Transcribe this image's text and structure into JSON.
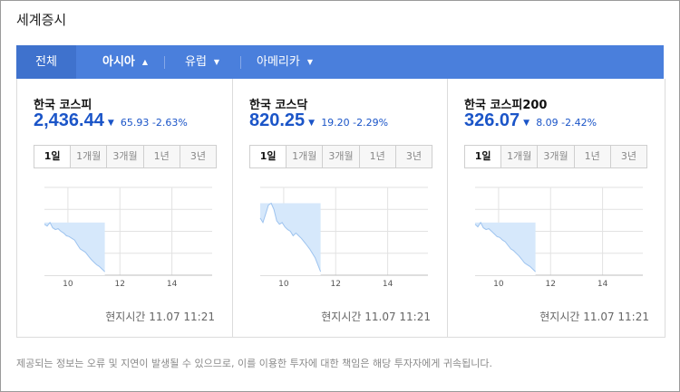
{
  "title": "세계증시",
  "tabs": [
    {
      "label": "전체",
      "active": false
    },
    {
      "label": "아시아",
      "active": true
    },
    {
      "label": "유럽",
      "active": false
    },
    {
      "label": "아메리카",
      "active": false
    }
  ],
  "cards": [
    {
      "name": "한국 코스피",
      "price": "2,436.44",
      "change": "65.93 -2.63%"
    },
    {
      "name": "한국 코스닥",
      "price": "820.25",
      "change": "19.20 -2.29%"
    },
    {
      "name": "한국 코스피200",
      "price": "326.07",
      "change": "8.09 -2.42%"
    }
  ],
  "periods": [
    "1일",
    "1개월",
    "3개월",
    "1년",
    "3년"
  ],
  "selected_period": "1일",
  "local_time": "현지시간 11.07 11:21",
  "disclaimer": "제공되는 정보는 오류 및 지연이 발생될 수 있으므로, 이를 이용한 투자에 대한 책임은 해당 투자자에게 귀속됩니다.",
  "colors": {
    "accent": "#4a7fdc",
    "price": "#1b55c8",
    "area_fill": "#d6e8fb",
    "area_line": "#9dc3ef",
    "up_line": "#e04040"
  },
  "chart_data": [
    {
      "type": "area",
      "x_ticks": [
        "10",
        "12",
        "14"
      ],
      "x_range": [
        "09:00",
        "15:30"
      ],
      "y": [
        0.42,
        0.44,
        0.4,
        0.46,
        0.48,
        0.47,
        0.5,
        0.52,
        0.55,
        0.56,
        0.58,
        0.6,
        0.65,
        0.7,
        0.72,
        0.74,
        0.78,
        0.82,
        0.85,
        0.88,
        0.9,
        0.93,
        0.96
      ]
    },
    {
      "type": "area",
      "x_ticks": [
        "10",
        "12",
        "14"
      ],
      "x_range": [
        "09:00",
        "15:30"
      ],
      "y": [
        0.35,
        0.4,
        0.3,
        0.2,
        0.18,
        0.25,
        0.38,
        0.42,
        0.4,
        0.45,
        0.48,
        0.5,
        0.55,
        0.52,
        0.55,
        0.58,
        0.62,
        0.66,
        0.7,
        0.75,
        0.8,
        0.88,
        0.96
      ]
    },
    {
      "type": "area",
      "x_ticks": [
        "10",
        "12",
        "14"
      ],
      "x_range": [
        "09:00",
        "15:30"
      ],
      "y": [
        0.42,
        0.45,
        0.4,
        0.46,
        0.48,
        0.47,
        0.5,
        0.53,
        0.56,
        0.57,
        0.6,
        0.62,
        0.66,
        0.7,
        0.72,
        0.75,
        0.78,
        0.82,
        0.86,
        0.88,
        0.9,
        0.93,
        0.96
      ]
    }
  ]
}
